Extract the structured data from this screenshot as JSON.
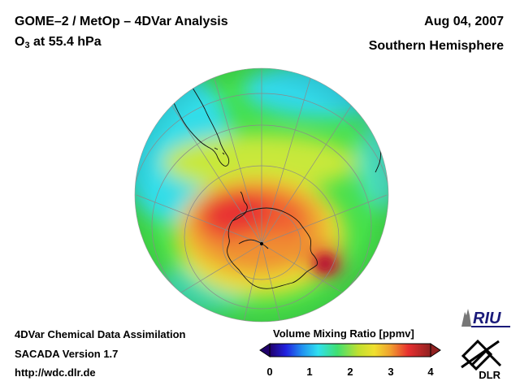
{
  "header": {
    "title": "GOME–2 / MetOp – 4DVar Analysis",
    "subtitle_main": "O",
    "subtitle_sub": "3",
    "subtitle_rest": " at 55.4 hPa",
    "date": "Aug 04, 2007",
    "hemisphere": "Southern Hemisphere"
  },
  "footer": {
    "line1": "4DVar Chemical Data Assimilation",
    "line2": "SACADA Version 1.7",
    "line3": "http://wdc.dlr.de"
  },
  "colorbar": {
    "title": "Volume Mixing Ratio [ppmv]",
    "ticks": [
      "0",
      "1",
      "2",
      "3",
      "4"
    ],
    "range": [
      0,
      4
    ]
  },
  "logos": {
    "riu": "RIU",
    "dlr": "DLR"
  },
  "colors": {
    "ocean_cyan": "#33dde8",
    "green": "#33dd55",
    "yellow": "#e8e830",
    "orange": "#f0a030",
    "red": "#e83030",
    "dark_red": "#b01818"
  }
}
